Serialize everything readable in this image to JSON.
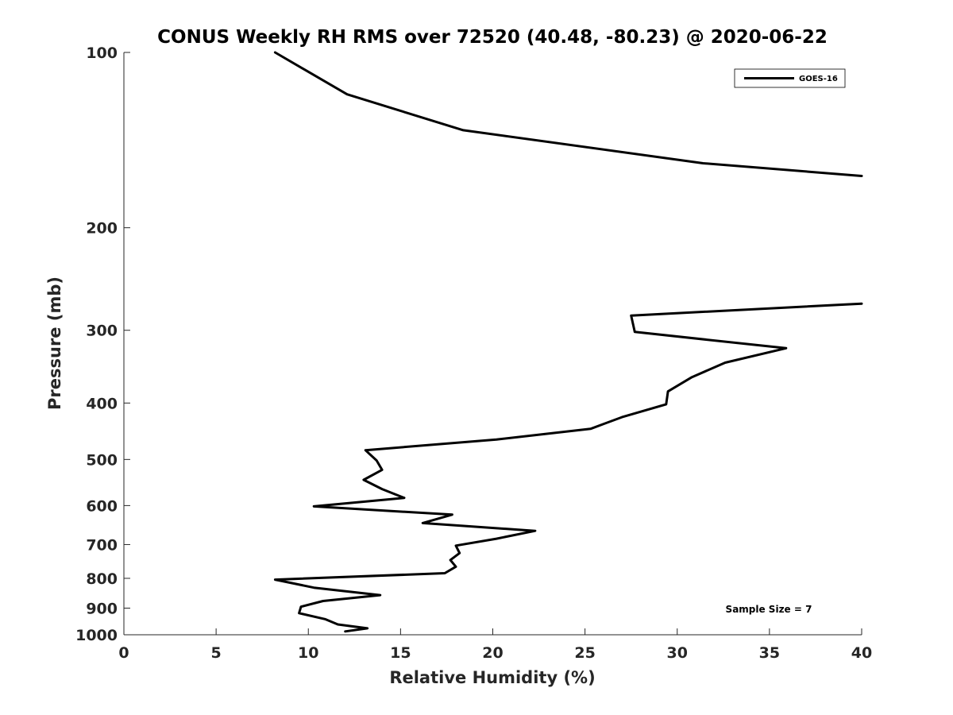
{
  "chart_data": {
    "type": "line",
    "title": "CONUS Weekly RH RMS over 72520 (40.48, -80.23) @ 2020-06-22",
    "xlabel": "Relative Humidity (%)",
    "ylabel": "Pressure (mb)",
    "xlim": [
      0,
      40
    ],
    "ylim": [
      100,
      1000
    ],
    "y_scale": "log",
    "y_reversed": true,
    "grid": false,
    "legend_position": "top-right",
    "x_ticks": [
      0,
      5,
      10,
      15,
      20,
      25,
      30,
      35,
      40
    ],
    "y_ticks": [
      100,
      200,
      300,
      400,
      500,
      600,
      700,
      800,
      900,
      1000
    ],
    "annotation": "Sample Size = 7",
    "line_color": "#000000",
    "series": [
      {
        "name": "GOES-16",
        "points": [
          [
            [
              8.2,
              100
            ],
            [
              12.1,
              118
            ],
            [
              18.4,
              136
            ],
            [
              31.4,
              155
            ],
            [
              40.0,
              163
            ]
          ],
          [
            [
              40.0,
              270
            ],
            [
              27.5,
              283
            ],
            [
              27.7,
              302
            ],
            [
              35.9,
              322
            ],
            [
              32.6,
              341
            ],
            [
              30.8,
              361
            ],
            [
              29.5,
              382
            ],
            [
              29.4,
              402
            ],
            [
              27.0,
              423
            ],
            [
              25.3,
              443
            ],
            [
              20.2,
              462
            ],
            [
              13.1,
              482
            ],
            [
              13.7,
              502
            ],
            [
              14.0,
              521
            ],
            [
              13.0,
              542
            ],
            [
              14.0,
              562
            ],
            [
              15.2,
              582
            ],
            [
              10.3,
              602
            ],
            [
              17.8,
              622
            ],
            [
              16.2,
              643
            ],
            [
              22.3,
              663
            ],
            [
              20.2,
              684
            ],
            [
              18.0,
              703
            ],
            [
              18.2,
              724
            ],
            [
              17.7,
              744
            ],
            [
              18.0,
              764
            ],
            [
              17.4,
              784
            ],
            [
              8.2,
              804
            ],
            [
              10.3,
              830
            ],
            [
              13.9,
              855
            ],
            [
              10.8,
              875
            ],
            [
              9.6,
              895
            ],
            [
              9.5,
              918
            ],
            [
              10.9,
              940
            ],
            [
              11.6,
              960
            ],
            [
              13.2,
              975
            ],
            [
              12.0,
              987
            ]
          ]
        ]
      }
    ]
  }
}
